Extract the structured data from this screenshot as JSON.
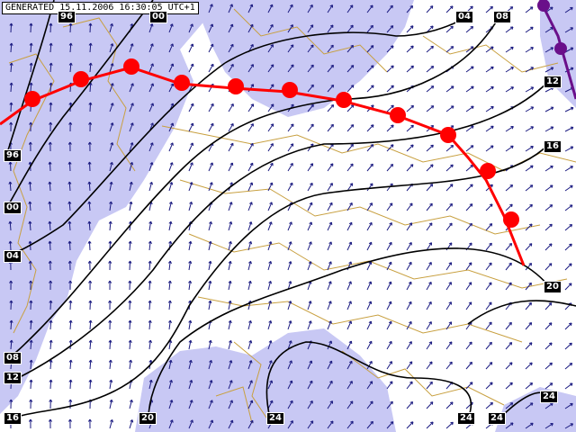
{
  "map": {
    "generated_label": "GENERATED 15.11.2006 16:30:05 UTC+1",
    "colors": {
      "background": "#ffffff",
      "shaded_region": "#c8c8f4",
      "border": "#c8a040",
      "wind_arrow": "#1a1a80",
      "isoline": "#000000",
      "warm_front": "#ff0000",
      "occluded_front": "#6a0f8a"
    },
    "isoline_labels": [
      {
        "id": "96-top",
        "text": "96"
      },
      {
        "id": "00-top",
        "text": "00"
      },
      {
        "id": "04-top",
        "text": "04"
      },
      {
        "id": "08-top",
        "text": "08"
      },
      {
        "id": "12-right",
        "text": "12"
      },
      {
        "id": "16-right",
        "text": "16"
      },
      {
        "id": "96-left",
        "text": "96"
      },
      {
        "id": "00-left",
        "text": "00"
      },
      {
        "id": "04-left",
        "text": "04"
      },
      {
        "id": "08-left",
        "text": "08"
      },
      {
        "id": "12-left",
        "text": "12"
      },
      {
        "id": "16-bottom",
        "text": "16"
      },
      {
        "id": "20-bottom",
        "text": "20"
      },
      {
        "id": "24-bottom-left",
        "text": "24"
      },
      {
        "id": "24-bottom-mid",
        "text": "24"
      },
      {
        "id": "24-bottom-right",
        "text": "24"
      },
      {
        "id": "24-right",
        "text": "24"
      },
      {
        "id": "20-right",
        "text": "20"
      }
    ],
    "fronts": [
      {
        "type": "warm",
        "symbol": "half-circle"
      },
      {
        "type": "occluded",
        "symbol": "half-circle"
      }
    ]
  }
}
